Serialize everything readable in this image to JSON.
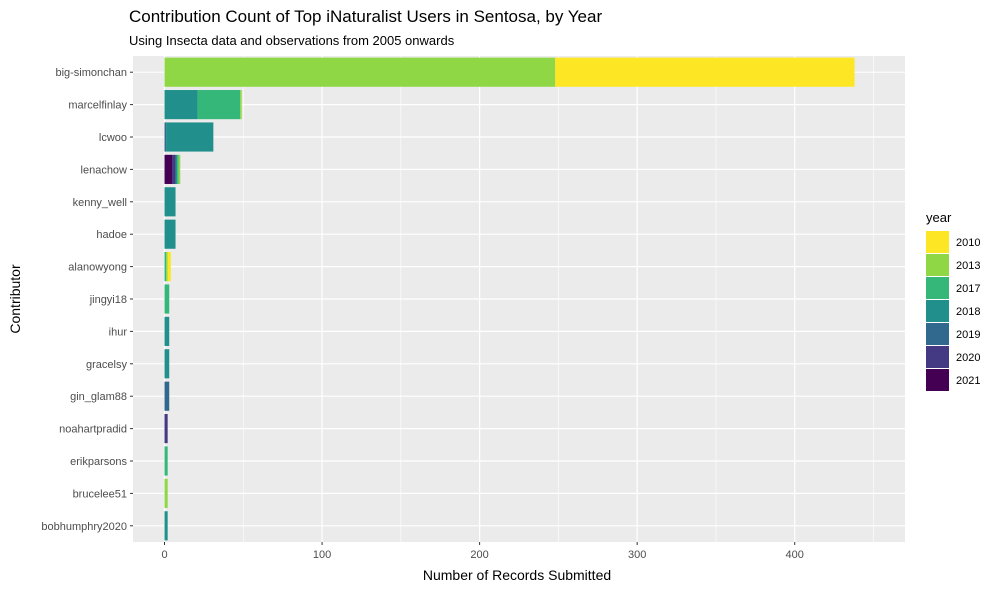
{
  "chart_data": {
    "type": "bar",
    "orientation": "horizontal",
    "stacked": true,
    "title": "Contribution Count of Top iNaturalist Users in Sentosa, by Year",
    "subtitle": "Using Insecta data and observations from 2005 onwards",
    "xlabel": "Number of Records Submitted",
    "ylabel": "Contributor",
    "xlim": [
      -20,
      470
    ],
    "x_ticks": [
      0,
      100,
      200,
      300,
      400
    ],
    "grid": true,
    "legend_position": "right",
    "legend_title": "year",
    "categories": [
      "big-simonchan",
      "marcelfinlay",
      "lcwoo",
      "lenachow",
      "kenny_well",
      "hadoe",
      "alanowyong",
      "jingyi18",
      "ihur",
      "gracelsy",
      "gin_glam88",
      "noahartpradid",
      "erikparsons",
      "brucelee51",
      "bobhumphry2020"
    ],
    "series": [
      {
        "name": "2010",
        "color": "#FDE725",
        "values": [
          190,
          0,
          0,
          0,
          0,
          0,
          2,
          0,
          0,
          0,
          0,
          0,
          0,
          0,
          0
        ]
      },
      {
        "name": "2013",
        "color": "#8FD744",
        "values": [
          248,
          1,
          0,
          1,
          0,
          0,
          1,
          0,
          0,
          0,
          0,
          0,
          0,
          2,
          0
        ]
      },
      {
        "name": "2017",
        "color": "#35B779",
        "values": [
          0,
          27,
          0,
          1,
          0,
          0,
          1,
          3,
          0,
          0,
          0,
          0,
          2,
          0,
          0
        ]
      },
      {
        "name": "2018",
        "color": "#21908C",
        "values": [
          0,
          21,
          30,
          1,
          7,
          7,
          0,
          0,
          3,
          3,
          0,
          0,
          0,
          0,
          2
        ]
      },
      {
        "name": "2019",
        "color": "#31688E",
        "values": [
          0,
          0,
          1,
          0,
          0,
          0,
          0,
          0,
          0,
          0,
          3,
          0,
          0,
          0,
          0
        ]
      },
      {
        "name": "2020",
        "color": "#443A83",
        "values": [
          0,
          0,
          0,
          2,
          0,
          0,
          0,
          0,
          0,
          0,
          0,
          2,
          0,
          0,
          0
        ]
      },
      {
        "name": "2021",
        "color": "#440154",
        "values": [
          0,
          0,
          0,
          5,
          0,
          0,
          0,
          0,
          0,
          0,
          0,
          0,
          0,
          0,
          0
        ]
      }
    ]
  }
}
